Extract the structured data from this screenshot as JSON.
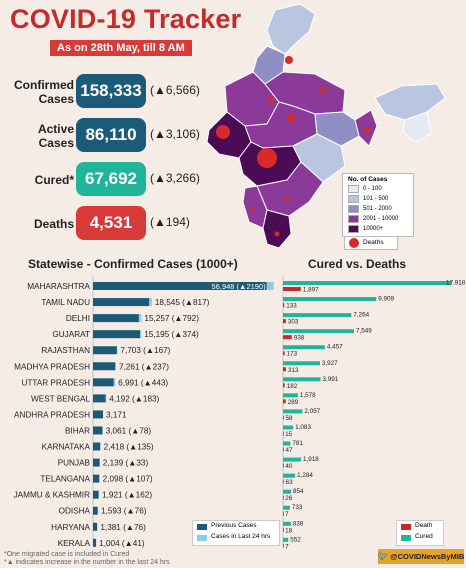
{
  "header": {
    "title": "COVID-19 Tracker",
    "subtitle": "As on 28th May, till 8 AM"
  },
  "stats": [
    {
      "label": "Confirmed Cases",
      "value": "158,333",
      "delta": "(▲6,566)",
      "color": "#1c5b78"
    },
    {
      "label": "Active Cases",
      "value": "86,110",
      "delta": "(▲3,106)",
      "color": "#1c5b78"
    },
    {
      "label": "Cured*",
      "value": "67,692",
      "delta": "(▲3,266)",
      "color": "#1fb59a"
    },
    {
      "label": "Deaths",
      "value": "4,531",
      "delta": "(▲194)",
      "color": "#d83a3a"
    }
  ],
  "map_legend": {
    "title": "No. of Cases",
    "ranges": [
      {
        "label": "0 - 100",
        "color": "#e6eaf2"
      },
      {
        "label": "101 - 500",
        "color": "#b9c6e0"
      },
      {
        "label": "501 - 2000",
        "color": "#8f8fc6"
      },
      {
        "label": "2001 - 10000",
        "color": "#8b3a9a"
      },
      {
        "label": "10000+",
        "color": "#4b0b55"
      }
    ],
    "deaths_label": "Deaths"
  },
  "sections": {
    "confirmed_title": "Statewise - Confirmed Cases (1000+)",
    "cured_title": "Cured vs. Deaths"
  },
  "chart_data": [
    {
      "type": "bar",
      "title": "Statewise - Confirmed Cases (1000+)",
      "categories": [
        "MAHARASHTRA",
        "TAMIL NADU",
        "DELHI",
        "GUJARAT",
        "RAJASTHAN",
        "MADHYA PRADESH",
        "UTTAR PRADESH",
        "WEST BENGAL",
        "ANDHRA PRADESH",
        "BIHAR",
        "KARNATAKA",
        "PUNJAB",
        "TELANGANA",
        "JAMMU & KASHMIR",
        "ODISHA",
        "HARYANA",
        "KERALA"
      ],
      "value_labels": [
        "56,948 (▲2190)",
        "18,545 (▲817)",
        "15,257 (▲792)",
        "15,195 (▲374)",
        "7,703 (▲167)",
        "7,261 (▲237)",
        "6,991 (▲443)",
        "4,192 (▲183)",
        "3,171",
        "3,061 (▲78)",
        "2,418 (▲135)",
        "2,139 (▲33)",
        "2,098 (▲107)",
        "1,921 (▲162)",
        "1,593 (▲76)",
        "1,381 (▲76)",
        "1,004 (▲41)"
      ],
      "series": [
        {
          "name": "Previous Cases",
          "values": [
            54758,
            17728,
            14465,
            14821,
            7536,
            7024,
            6548,
            4009,
            3171,
            2983,
            2283,
            2106,
            1991,
            1759,
            1517,
            1305,
            963
          ],
          "color": "#1c5b78"
        },
        {
          "name": "Cases in Last 24 hrs",
          "values": [
            2190,
            817,
            792,
            374,
            167,
            237,
            443,
            183,
            0,
            78,
            135,
            33,
            107,
            162,
            76,
            76,
            41
          ],
          "color": "#8fcbe8"
        }
      ],
      "xlim": [
        0,
        58000
      ]
    },
    {
      "type": "bar",
      "title": "Cured vs. Deaths",
      "categories": [
        "MAHARASHTRA",
        "TAMIL NADU",
        "DELHI",
        "GUJARAT",
        "RAJASTHAN",
        "MADHYA PRADESH",
        "UTTAR PRADESH",
        "WEST BENGAL",
        "ANDHRA PRADESH",
        "BIHAR",
        "KARNATAKA",
        "PUNJAB",
        "TELANGANA",
        "JAMMU & KASHMIR",
        "ODISHA",
        "HARYANA",
        "KERALA"
      ],
      "series": [
        {
          "name": "Cured",
          "values": [
            17918,
            9909,
            7264,
            7549,
            4457,
            3927,
            3991,
            1578,
            2057,
            1083,
            781,
            1918,
            1284,
            854,
            733,
            838,
            552
          ],
          "color": "#1fb59a"
        },
        {
          "name": "Death",
          "values": [
            1897,
            133,
            303,
            938,
            173,
            313,
            182,
            289,
            58,
            15,
            47,
            40,
            63,
            26,
            7,
            18,
            7
          ],
          "color": "#c62a2a"
        }
      ],
      "xlim": [
        0,
        18500
      ]
    }
  ],
  "footnotes": [
    "*One migrated case is included in Cured",
    "*▲ indicates increase in the number in the last 24 hrs"
  ],
  "twitter": "@COVIDNewsByMIB"
}
